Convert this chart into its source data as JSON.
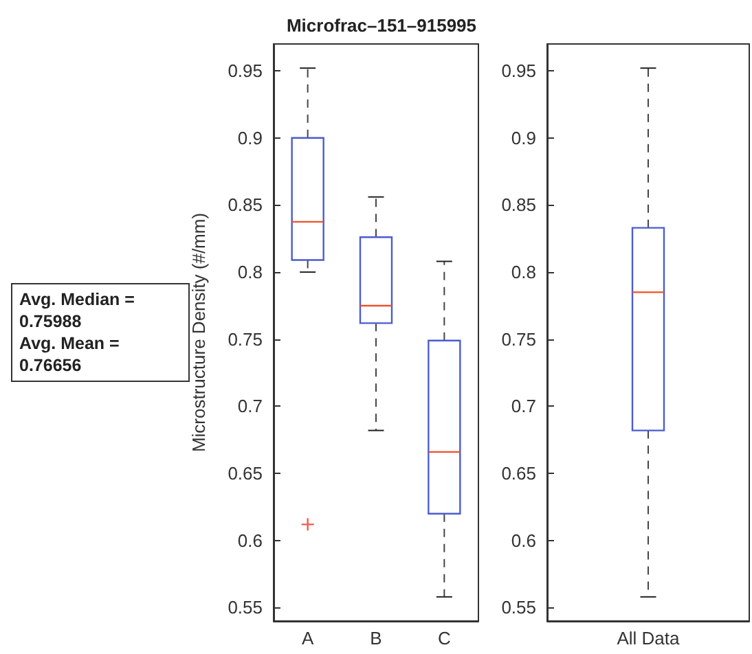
{
  "chart_data": [
    {
      "type": "box",
      "title": "Microfrac–151–915995",
      "ylabel": "Microstructure Density (#/mm)",
      "categories": [
        "A",
        "B",
        "C"
      ],
      "boxes": [
        {
          "low": 0.8,
          "q1": 0.809,
          "median": 0.8375,
          "q3": 0.9,
          "high": 0.952,
          "outliers": [
            0.612
          ]
        },
        {
          "low": 0.682,
          "q1": 0.762,
          "median": 0.775,
          "q3": 0.826,
          "high": 0.856
        },
        {
          "low": 0.558,
          "q1": 0.62,
          "median": 0.666,
          "q3": 0.749,
          "high": 0.808
        }
      ],
      "ylim": [
        0.54,
        0.97
      ],
      "yticks": [
        0.55,
        0.6,
        0.65,
        0.7,
        0.75,
        0.8,
        0.85,
        0.9,
        0.95
      ],
      "annotations": [
        "Avg. Median = 0.75988",
        "Avg. Mean = 0.76656"
      ]
    },
    {
      "type": "box",
      "categories": [
        "All Data"
      ],
      "boxes": [
        {
          "low": 0.558,
          "q1": 0.682,
          "median": 0.785,
          "q3": 0.833,
          "high": 0.952
        }
      ],
      "ylim": [
        0.54,
        0.97
      ],
      "yticks": [
        0.55,
        0.6,
        0.65,
        0.7,
        0.75,
        0.8,
        0.85,
        0.9,
        0.95
      ]
    }
  ]
}
